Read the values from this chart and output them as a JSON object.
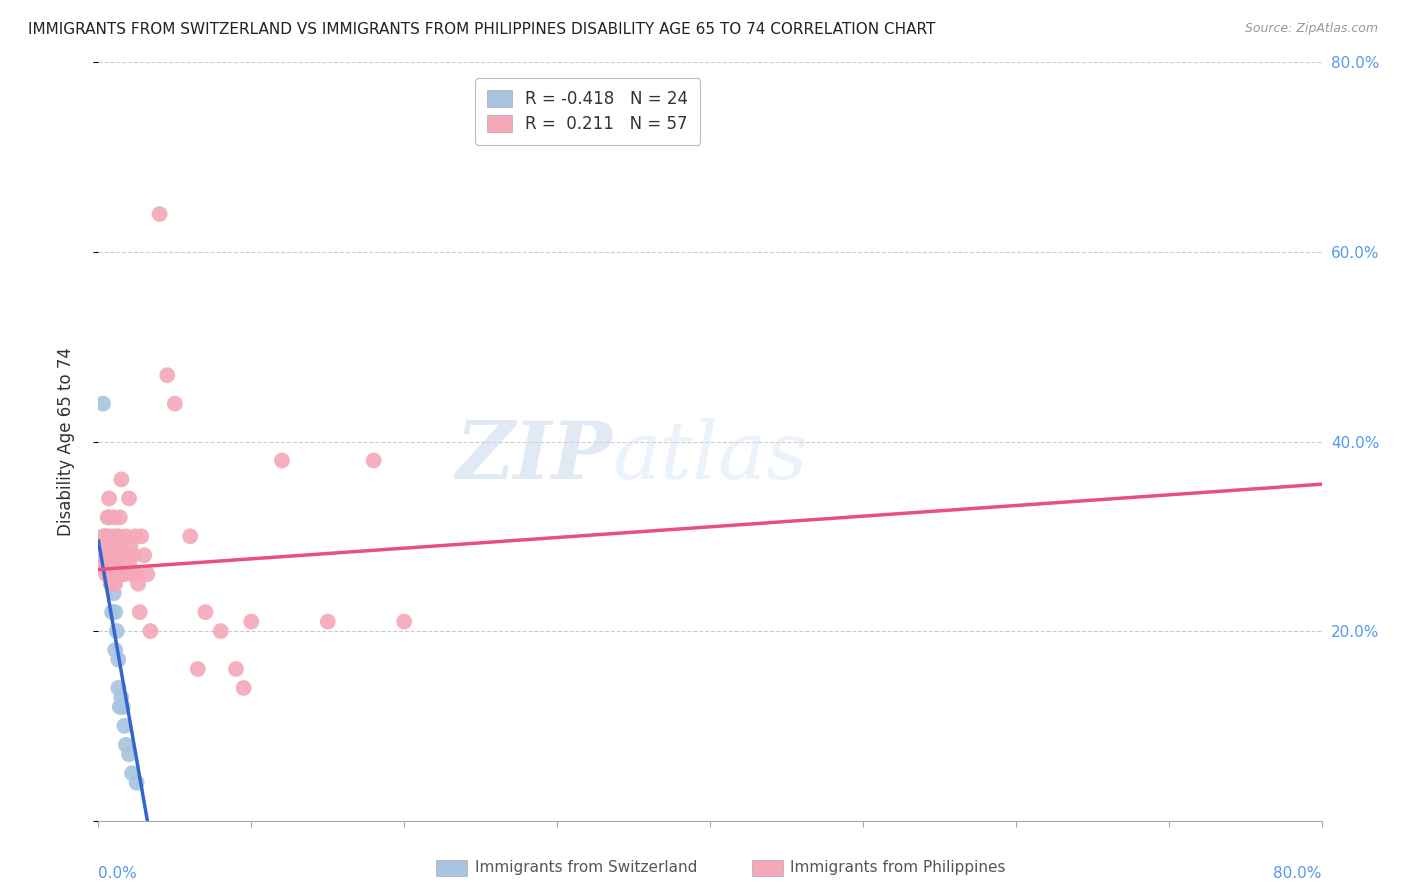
{
  "title": "IMMIGRANTS FROM SWITZERLAND VS IMMIGRANTS FROM PHILIPPINES DISABILITY AGE 65 TO 74 CORRELATION CHART",
  "source": "Source: ZipAtlas.com",
  "ylabel": "Disability Age 65 to 74",
  "xlim": [
    0.0,
    0.8
  ],
  "ylim": [
    0.0,
    0.8
  ],
  "x_left_label": "0.0%",
  "x_right_label": "80.0%",
  "ytick_labels_right": [
    "80.0%",
    "60.0%",
    "40.0%",
    "20.0%",
    ""
  ],
  "ytick_vals": [
    0.8,
    0.6,
    0.4,
    0.2,
    0.0
  ],
  "grid_color": "#cccccc",
  "background_color": "#ffffff",
  "switzerland_color": "#a8c4e0",
  "philippines_color": "#f4a8b8",
  "switzerland_line_color": "#3366cc",
  "philippines_line_color": "#e8527a",
  "legend_switzerland_R": "-0.418",
  "legend_switzerland_N": "24",
  "legend_philippines_R": "0.211",
  "legend_philippines_N": "57",
  "watermark_zip": "ZIP",
  "watermark_atlas": "atlas",
  "switzerland_x": [
    0.003,
    0.005,
    0.006,
    0.007,
    0.007,
    0.008,
    0.008,
    0.009,
    0.009,
    0.01,
    0.01,
    0.011,
    0.011,
    0.012,
    0.013,
    0.013,
    0.014,
    0.015,
    0.016,
    0.017,
    0.018,
    0.02,
    0.022,
    0.025
  ],
  "switzerland_y": [
    0.44,
    0.3,
    0.28,
    0.26,
    0.32,
    0.28,
    0.25,
    0.27,
    0.22,
    0.26,
    0.24,
    0.22,
    0.18,
    0.2,
    0.17,
    0.14,
    0.12,
    0.13,
    0.12,
    0.1,
    0.08,
    0.07,
    0.05,
    0.04
  ],
  "philippines_x": [
    0.002,
    0.003,
    0.004,
    0.005,
    0.005,
    0.006,
    0.006,
    0.007,
    0.007,
    0.008,
    0.008,
    0.009,
    0.009,
    0.01,
    0.01,
    0.011,
    0.011,
    0.012,
    0.012,
    0.013,
    0.013,
    0.014,
    0.014,
    0.015,
    0.015,
    0.016,
    0.016,
    0.017,
    0.018,
    0.019,
    0.02,
    0.02,
    0.021,
    0.022,
    0.023,
    0.024,
    0.025,
    0.026,
    0.027,
    0.028,
    0.03,
    0.032,
    0.034,
    0.04,
    0.045,
    0.05,
    0.06,
    0.065,
    0.07,
    0.08,
    0.09,
    0.095,
    0.1,
    0.12,
    0.15,
    0.18,
    0.2
  ],
  "philippines_y": [
    0.27,
    0.3,
    0.29,
    0.26,
    0.28,
    0.32,
    0.3,
    0.27,
    0.34,
    0.25,
    0.28,
    0.3,
    0.26,
    0.29,
    0.32,
    0.25,
    0.28,
    0.3,
    0.27,
    0.26,
    0.3,
    0.28,
    0.32,
    0.26,
    0.36,
    0.29,
    0.28,
    0.26,
    0.3,
    0.28,
    0.27,
    0.34,
    0.29,
    0.26,
    0.28,
    0.3,
    0.26,
    0.25,
    0.22,
    0.3,
    0.28,
    0.26,
    0.2,
    0.64,
    0.47,
    0.44,
    0.3,
    0.16,
    0.22,
    0.2,
    0.16,
    0.14,
    0.21,
    0.38,
    0.21,
    0.38,
    0.21
  ],
  "switz_trendline_x": [
    0.0,
    0.032
  ],
  "switz_trendline_y": [
    0.295,
    0.0
  ],
  "phil_trendline_x": [
    0.0,
    0.8
  ],
  "phil_trendline_y": [
    0.265,
    0.355
  ]
}
